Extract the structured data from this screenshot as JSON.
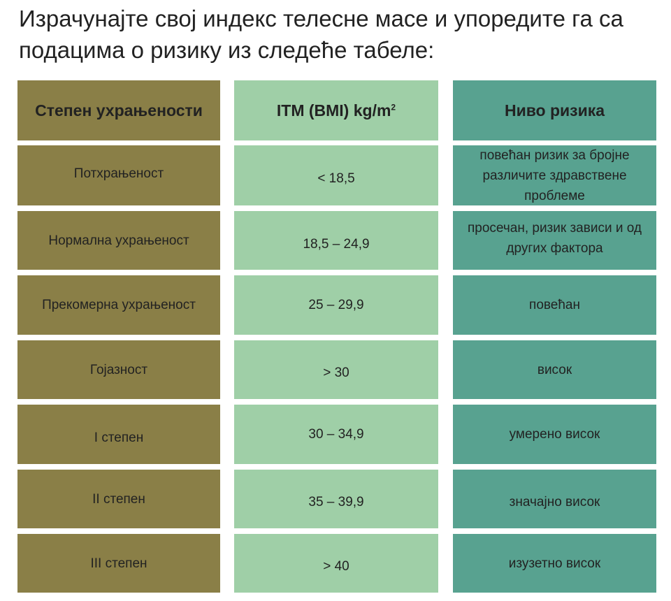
{
  "intro_text": "Израчунајте свој индекс телесне масе и упоредите га са подацима о ризику из следеће табеле:",
  "table": {
    "headers": {
      "category": "Степен ухрањености",
      "bmi_main": "ITM (BMI) kg/m",
      "bmi_sup": "2",
      "risk": "Ниво ризика"
    },
    "rows": [
      {
        "category": "Потхрањеност",
        "bmi": "< 18,5",
        "risk": "повећан ризик за бројне различите здравствене проблеме"
      },
      {
        "category": "Нормална ухрањеност",
        "bmi": "18,5 – 24,9",
        "risk": "просечан, ризик зависи и од других фактора"
      },
      {
        "category": "Прекомерна ухрањеност",
        "bmi": "25 – 29,9",
        "risk": "повећан"
      },
      {
        "category": "Гојазност",
        "bmi": "> 30",
        "risk": "висок"
      },
      {
        "category": "I степен",
        "bmi": "30 – 34,9",
        "risk": "умерено висок"
      },
      {
        "category": "II степен",
        "bmi": "35 – 39,9",
        "risk": "значајно висок"
      },
      {
        "category": "III степен",
        "bmi": "> 40",
        "risk": "изузетно висок"
      }
    ]
  },
  "colors": {
    "category_column": "#8a7f47",
    "bmi_column": "#9fcfa7",
    "risk_column": "#58a290"
  }
}
